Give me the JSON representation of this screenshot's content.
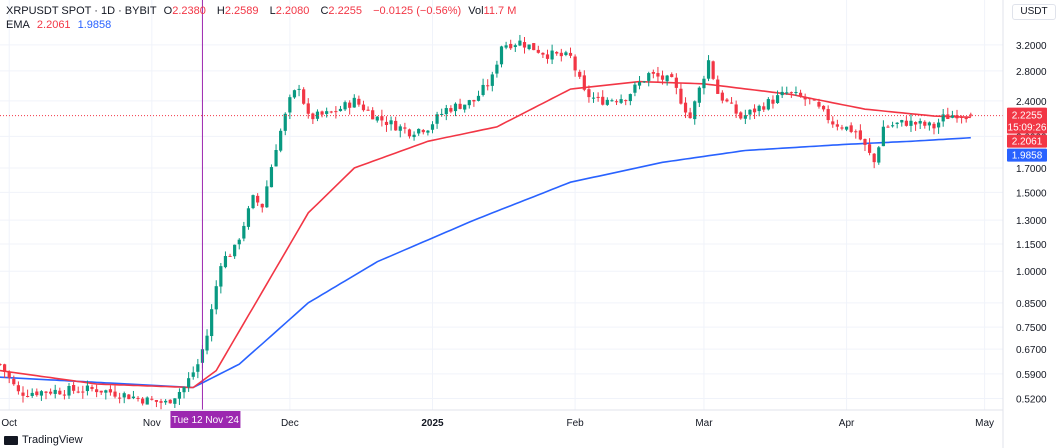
{
  "header": {
    "symbol": "XRPUSDT SPOT · 1D · BYBIT",
    "o_label": "O",
    "o_val": "2.2380",
    "h_label": "H",
    "h_val": "2.2589",
    "l_label": "L",
    "l_val": "2.2080",
    "c_label": "C",
    "c_val": "2.2255",
    "change": "−0.0125 (−0.56%)",
    "vol_label": "Vol",
    "vol_val": "11.7 M",
    "ema_label": "EMA",
    "ema1": "2.2061",
    "ema2": "1.9858"
  },
  "currency": "USDT",
  "branding": "TradingView",
  "crosshair_label": "Tue 12 Nov '24",
  "price_labels": {
    "last": "2.2255",
    "countdown": "15:09:26",
    "ema_fast": "2.2061",
    "ema_slow": "1.9858"
  },
  "colors": {
    "up": "#089981",
    "down": "#f23645",
    "ema_fast": "#f23645",
    "ema_slow": "#2962ff",
    "crosshair": "#9c27b0"
  },
  "chart_data": {
    "type": "candlestick",
    "title": "XRPUSDT SPOT · 1D · BYBIT",
    "y_scale": "log",
    "y_ticks": [
      3.2,
      2.8,
      2.4,
      2.0,
      1.7,
      1.5,
      1.3,
      1.15,
      1.0,
      0.85,
      0.75,
      0.67,
      0.59,
      0.52
    ],
    "y_tick_labels": [
      "3.2000",
      "2.8000",
      "2.4000",
      "2.0000",
      "1.7000",
      "1.5000",
      "1.3000",
      "1.1500",
      "1.0000",
      "0.8500",
      "0.7500",
      "0.6700",
      "0.5900",
      "0.5200"
    ],
    "ylim": [
      0.49,
      3.6
    ],
    "x_tick_labels": [
      "Oct",
      "Nov",
      "Dec",
      "2025",
      "Feb",
      "Mar",
      "Apr",
      "May"
    ],
    "x_ticks": [
      "2024-10-01",
      "2024-11-01",
      "2024-12-01",
      "2025-01-01",
      "2025-02-01",
      "2025-03-01",
      "2025-04-01",
      "2025-05-01"
    ],
    "x_range": [
      "2024-09-29",
      "2025-05-05"
    ],
    "close_keyframes": [
      [
        "2024-09-29",
        0.62
      ],
      [
        "2024-10-03",
        0.535
      ],
      [
        "2024-10-10",
        0.54
      ],
      [
        "2024-10-20",
        0.545
      ],
      [
        "2024-10-26",
        0.53
      ],
      [
        "2024-10-31",
        0.515
      ],
      [
        "2024-11-04",
        0.508
      ],
      [
        "2024-11-08",
        0.55
      ],
      [
        "2024-11-11",
        0.62
      ],
      [
        "2024-11-13",
        0.72
      ],
      [
        "2024-11-16",
        1.05
      ],
      [
        "2024-11-19",
        1.12
      ],
      [
        "2024-11-23",
        1.45
      ],
      [
        "2024-11-25",
        1.4
      ],
      [
        "2024-11-28",
        1.9
      ],
      [
        "2024-12-01",
        2.4
      ],
      [
        "2024-12-03",
        2.6
      ],
      [
        "2024-12-05",
        2.2
      ],
      [
        "2024-12-10",
        2.25
      ],
      [
        "2024-12-15",
        2.4
      ],
      [
        "2024-12-20",
        2.2
      ],
      [
        "2024-12-27",
        2.05
      ],
      [
        "2024-12-31",
        2.1
      ],
      [
        "2025-01-04",
        2.3
      ],
      [
        "2025-01-10",
        2.4
      ],
      [
        "2025-01-14",
        2.7
      ],
      [
        "2025-01-16",
        3.2
      ],
      [
        "2025-01-20",
        3.25
      ],
      [
        "2025-01-26",
        3.05
      ],
      [
        "2025-01-31",
        3.0
      ],
      [
        "2025-02-03",
        2.5
      ],
      [
        "2025-02-06",
        2.4
      ],
      [
        "2025-02-12",
        2.45
      ],
      [
        "2025-02-17",
        2.75
      ],
      [
        "2025-02-22",
        2.65
      ],
      [
        "2025-02-26",
        2.2
      ],
      [
        "2025-03-02",
        2.95
      ],
      [
        "2025-03-04",
        2.5
      ],
      [
        "2025-03-09",
        2.2
      ],
      [
        "2025-03-14",
        2.35
      ],
      [
        "2025-03-19",
        2.5
      ],
      [
        "2025-03-24",
        2.4
      ],
      [
        "2025-03-29",
        2.15
      ],
      [
        "2025-04-03",
        2.05
      ],
      [
        "2025-04-07",
        1.75
      ],
      [
        "2025-04-09",
        2.1
      ],
      [
        "2025-04-14",
        2.15
      ],
      [
        "2025-04-20",
        2.1
      ],
      [
        "2025-04-22",
        2.2
      ],
      [
        "2025-04-25",
        2.25
      ],
      [
        "2025-04-28",
        2.2255
      ]
    ],
    "ema_fast_keyframes": [
      [
        "2024-09-29",
        0.6
      ],
      [
        "2024-10-20",
        0.56
      ],
      [
        "2024-11-10",
        0.55
      ],
      [
        "2024-11-15",
        0.6
      ],
      [
        "2024-11-25",
        0.9
      ],
      [
        "2024-12-05",
        1.35
      ],
      [
        "2024-12-15",
        1.7
      ],
      [
        "2024-12-31",
        1.95
      ],
      [
        "2025-01-15",
        2.1
      ],
      [
        "2025-01-31",
        2.55
      ],
      [
        "2025-02-15",
        2.65
      ],
      [
        "2025-03-01",
        2.62
      ],
      [
        "2025-03-20",
        2.48
      ],
      [
        "2025-04-05",
        2.3
      ],
      [
        "2025-04-20",
        2.22
      ],
      [
        "2025-04-28",
        2.2061
      ]
    ],
    "ema_slow_keyframes": [
      [
        "2024-09-29",
        0.58
      ],
      [
        "2024-11-10",
        0.55
      ],
      [
        "2024-11-20",
        0.62
      ],
      [
        "2024-12-05",
        0.85
      ],
      [
        "2024-12-20",
        1.05
      ],
      [
        "2025-01-10",
        1.3
      ],
      [
        "2025-01-31",
        1.58
      ],
      [
        "2025-02-20",
        1.75
      ],
      [
        "2025-03-10",
        1.86
      ],
      [
        "2025-04-01",
        1.92
      ],
      [
        "2025-04-15",
        1.95
      ],
      [
        "2025-04-28",
        1.9858
      ]
    ],
    "last_candle": {
      "date": "2025-04-28",
      "open": 2.238,
      "high": 2.2589,
      "low": 2.208,
      "close": 2.2255
    },
    "series": [
      {
        "name": "EMA",
        "value": "2.2061"
      },
      {
        "name": "EMA",
        "value": "1.9858"
      }
    ],
    "crosshair_date": "2024-11-12",
    "grid": true
  }
}
